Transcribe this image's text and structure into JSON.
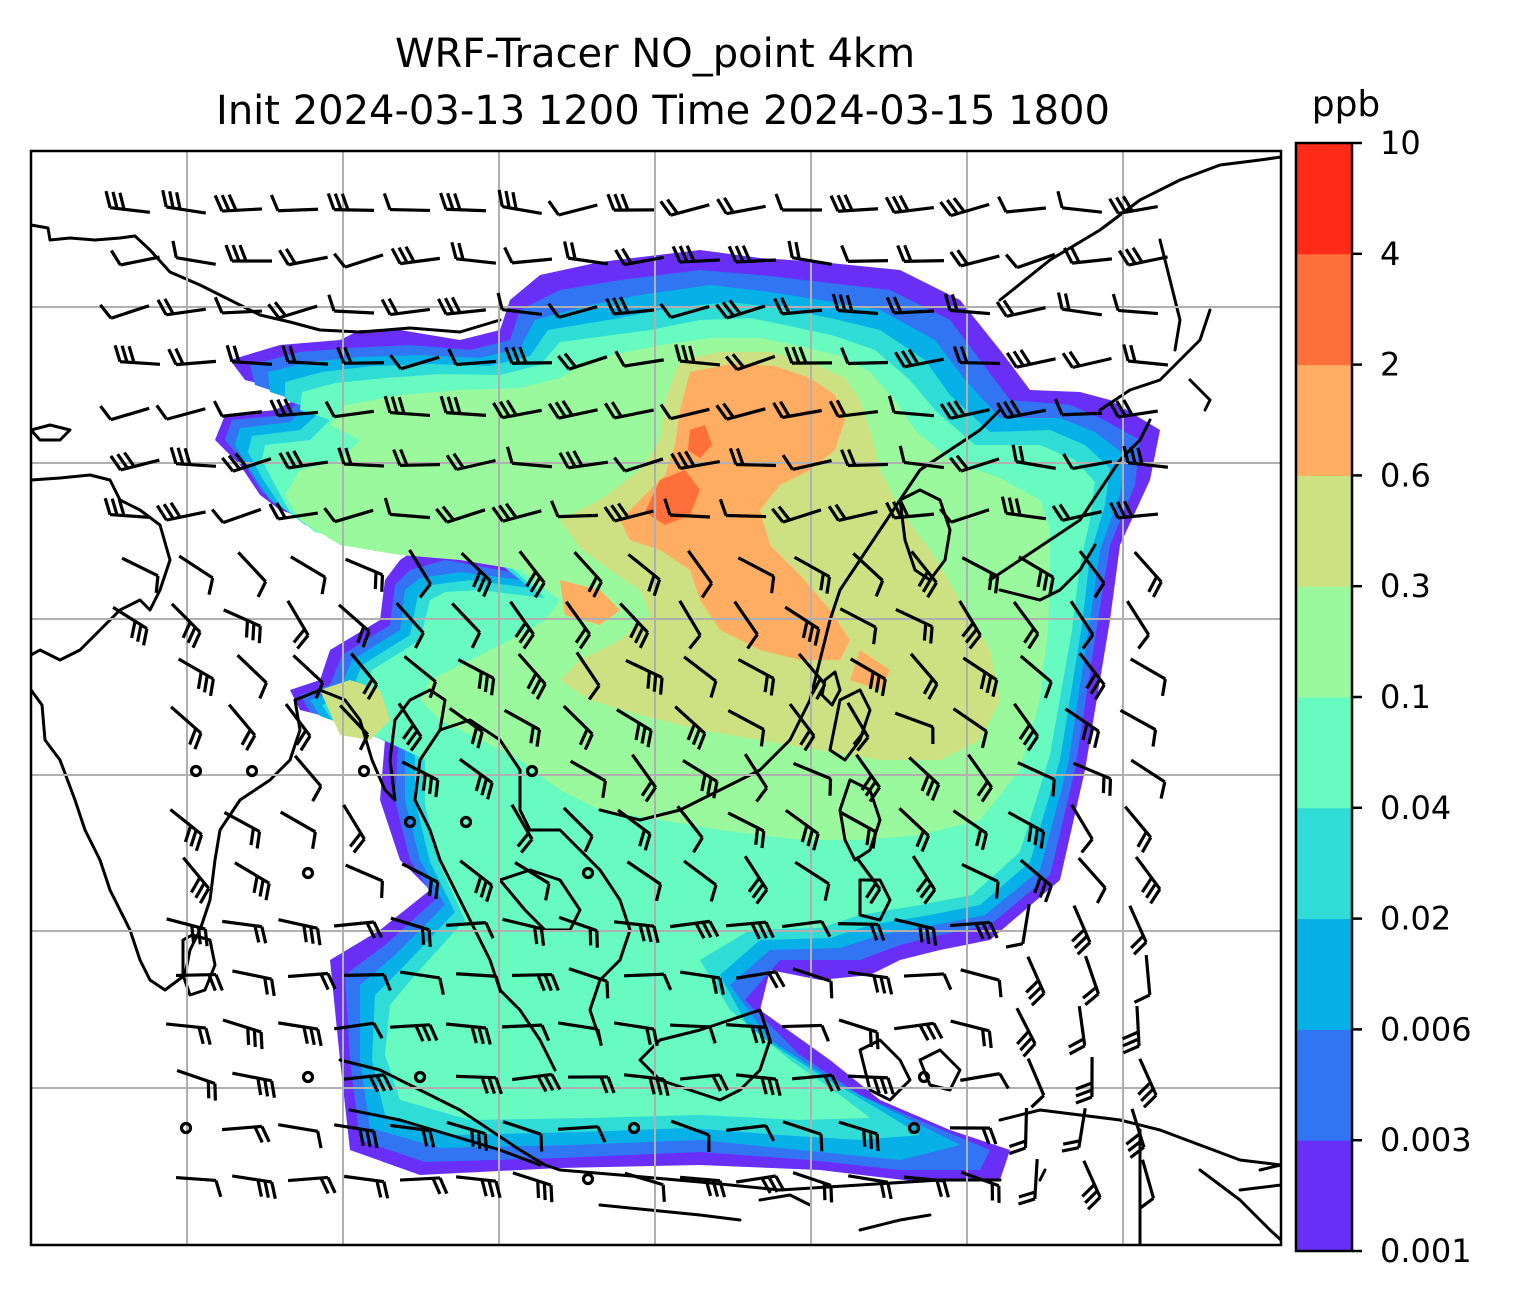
{
  "figure": {
    "title_line1": "WRF-Tracer NO_point 4km",
    "title_line2": "Init 2024-03-13 1200 Time 2024-03-15 1800"
  },
  "colorbar": {
    "units": "ppb",
    "levels": [
      "0.001",
      "0.003",
      "0.006",
      "0.02",
      "0.04",
      "0.1",
      "0.3",
      "0.6",
      "2",
      "4",
      "10"
    ],
    "colors": [
      "#6a2ff7",
      "#3275f2",
      "#07b1e8",
      "#30dcd6",
      "#67fac1",
      "#9af89d",
      "#cde182",
      "#ffad62",
      "#ff6f3c",
      "#ff2b18"
    ]
  },
  "map": {
    "type": "filled contour tracer concentration with wind barbs over Southeast/East Asia",
    "gridlines": true,
    "coastlines": true,
    "background": "#ffffff"
  }
}
